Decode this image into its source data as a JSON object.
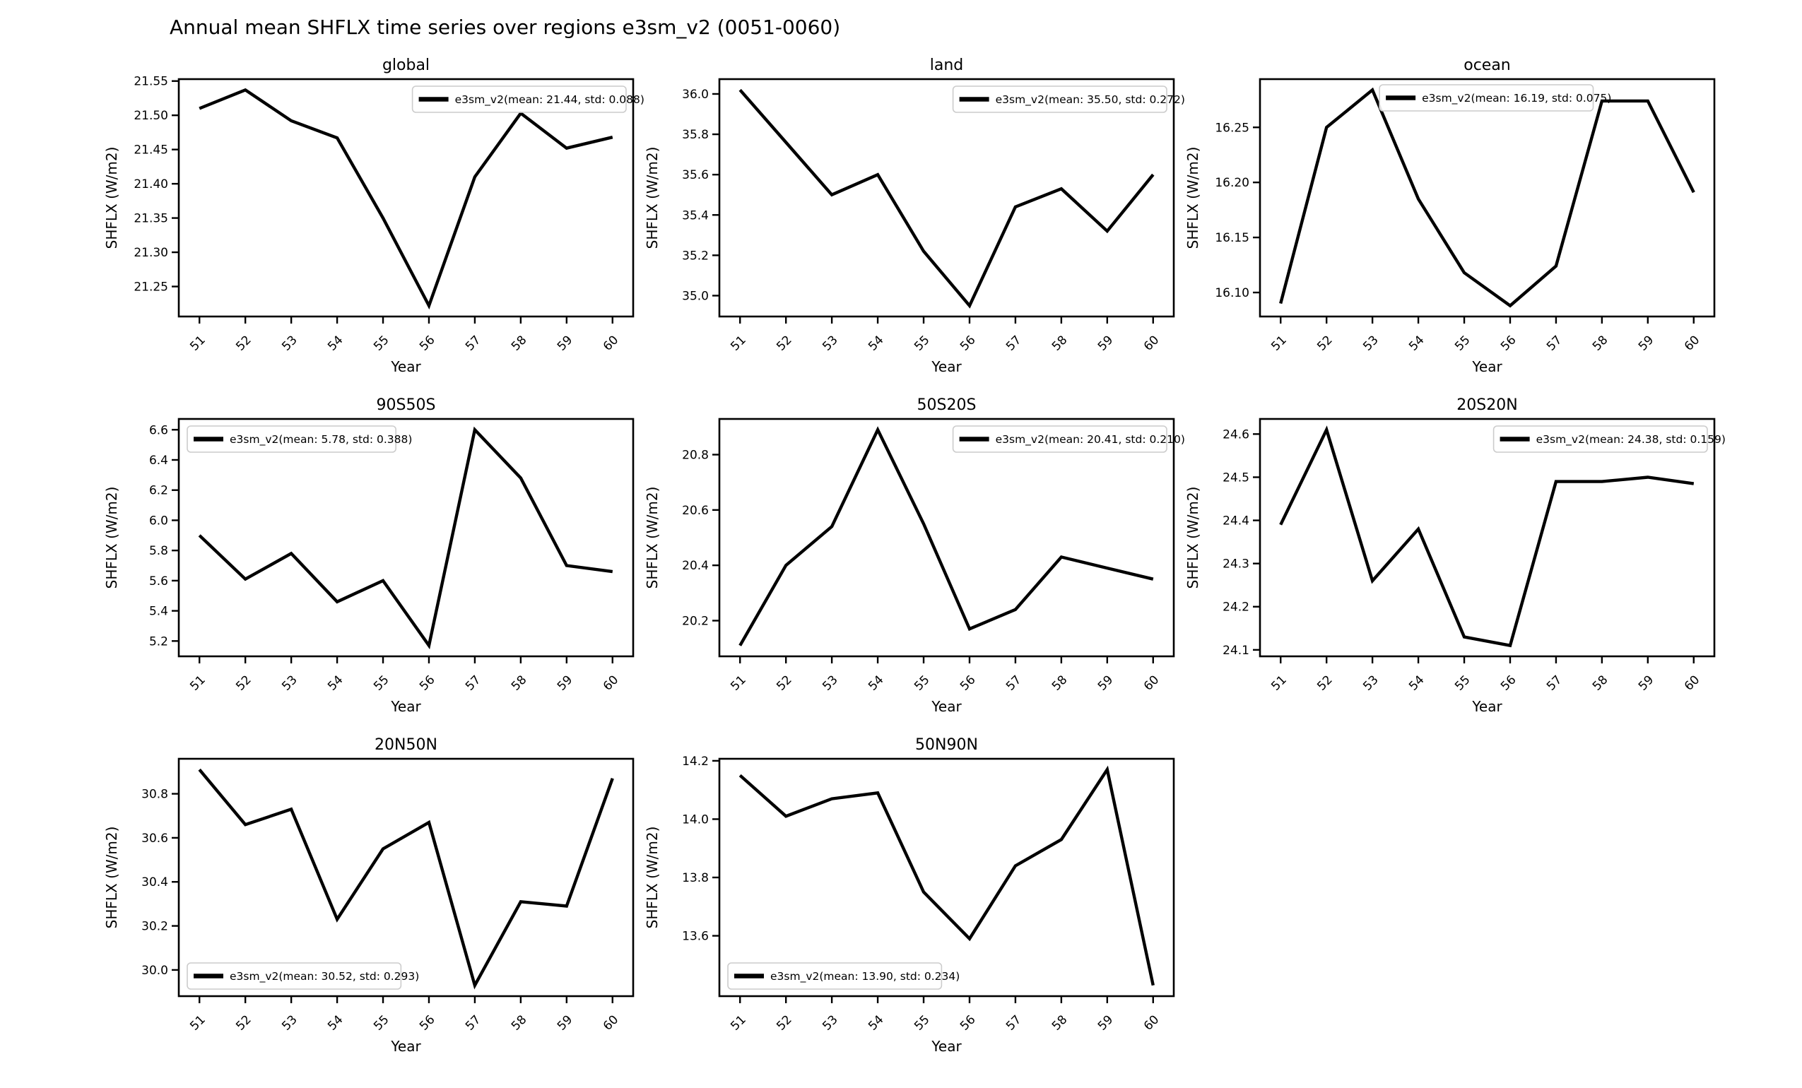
{
  "figure": {
    "title": "Annual mean SHFLX time series over regions e3sm_v2 (0051-0060)",
    "background_color": "#ffffff",
    "line_color": "#000000",
    "legend_border_color": "#cccccc"
  },
  "chart_data": [
    {
      "type": "line",
      "region": "global",
      "title": "global",
      "xlabel": "Year",
      "ylabel": "SHFLX (W/m2)",
      "x": [
        51,
        52,
        53,
        54,
        55,
        56,
        57,
        58,
        59,
        60
      ],
      "xtick_labels": [
        "51",
        "52",
        "53",
        "54",
        "55",
        "56",
        "57",
        "58",
        "59",
        "60"
      ],
      "series": [
        {
          "name": "e3sm_v2",
          "legend_label": "e3sm_v2(mean: 21.44, std: 0.088)",
          "values": [
            21.51,
            21.537,
            21.492,
            21.467,
            21.35,
            21.222,
            21.41,
            21.503,
            21.452,
            21.468
          ]
        }
      ],
      "mean": 21.44,
      "std": 0.088,
      "ylim": [
        21.2062,
        21.5528
      ],
      "yticks": [
        21.25,
        21.3,
        21.35,
        21.4,
        21.45,
        21.5,
        21.55
      ],
      "ytick_labels": [
        "21.25",
        "21.30",
        "21.35",
        "21.40",
        "21.45",
        "21.50",
        "21.55"
      ],
      "legend_loc": "upper right",
      "grid": false,
      "row": 0,
      "col": 0
    },
    {
      "type": "line",
      "region": "land",
      "title": "land",
      "xlabel": "Year",
      "ylabel": "SHFLX (W/m2)",
      "x": [
        51,
        52,
        53,
        54,
        55,
        56,
        57,
        58,
        59,
        60
      ],
      "xtick_labels": [
        "51",
        "52",
        "53",
        "54",
        "55",
        "56",
        "57",
        "58",
        "59",
        "60"
      ],
      "series": [
        {
          "name": "e3sm_v2",
          "legend_label": "e3sm_v2(mean: 35.50, std: 0.272)",
          "values": [
            36.02,
            35.76,
            35.5,
            35.6,
            35.22,
            34.95,
            35.44,
            35.53,
            35.32,
            35.6
          ]
        }
      ],
      "mean": 35.5,
      "std": 0.272,
      "ylim": [
        34.8965,
        36.0735
      ],
      "yticks": [
        35.0,
        35.2,
        35.4,
        35.6,
        35.8,
        36.0
      ],
      "ytick_labels": [
        "35.0",
        "35.2",
        "35.4",
        "35.6",
        "35.8",
        "36.0"
      ],
      "legend_loc": "upper right",
      "grid": false,
      "row": 0,
      "col": 1
    },
    {
      "type": "line",
      "region": "ocean",
      "title": "ocean",
      "xlabel": "Year",
      "ylabel": "SHFLX (W/m2)",
      "x": [
        51,
        52,
        53,
        54,
        55,
        56,
        57,
        58,
        59,
        60
      ],
      "xtick_labels": [
        "51",
        "52",
        "53",
        "54",
        "55",
        "56",
        "57",
        "58",
        "59",
        "60"
      ],
      "series": [
        {
          "name": "e3sm_v2",
          "legend_label": "e3sm_v2(mean: 16.19, std: 0.075)",
          "values": [
            16.09,
            16.25,
            16.284,
            16.185,
            16.118,
            16.088,
            16.124,
            16.274,
            16.274,
            16.191
          ]
        }
      ],
      "mean": 16.19,
      "std": 0.075,
      "ylim": [
        16.0782,
        16.2938
      ],
      "yticks": [
        16.1,
        16.15,
        16.2,
        16.25
      ],
      "ytick_labels": [
        "16.10",
        "16.15",
        "16.20",
        "16.25"
      ],
      "legend_loc": "upper center",
      "legend_x_frac": 0.263,
      "grid": false,
      "row": 0,
      "col": 2
    },
    {
      "type": "line",
      "region": "90S50S",
      "title": "90S50S",
      "xlabel": "Year",
      "ylabel": "SHFLX (W/m2)",
      "x": [
        51,
        52,
        53,
        54,
        55,
        56,
        57,
        58,
        59,
        60
      ],
      "xtick_labels": [
        "51",
        "52",
        "53",
        "54",
        "55",
        "56",
        "57",
        "58",
        "59",
        "60"
      ],
      "series": [
        {
          "name": "e3sm_v2",
          "legend_label": "e3sm_v2(mean: 5.78, std: 0.388)",
          "values": [
            5.9,
            5.61,
            5.78,
            5.46,
            5.6,
            5.17,
            6.6,
            6.28,
            5.7,
            5.66
          ]
        }
      ],
      "mean": 5.78,
      "std": 0.388,
      "ylim": [
        5.0985,
        6.6715
      ],
      "yticks": [
        5.2,
        5.4,
        5.6,
        5.8,
        6.0,
        6.2,
        6.4,
        6.6
      ],
      "ytick_labels": [
        "5.2",
        "5.4",
        "5.6",
        "5.8",
        "6.0",
        "6.2",
        "6.4",
        "6.6"
      ],
      "legend_loc": "upper left",
      "grid": false,
      "row": 1,
      "col": 0
    },
    {
      "type": "line",
      "region": "50S20S",
      "title": "50S20S",
      "xlabel": "Year",
      "ylabel": "SHFLX (W/m2)",
      "x": [
        51,
        52,
        53,
        54,
        55,
        56,
        57,
        58,
        59,
        60
      ],
      "xtick_labels": [
        "51",
        "52",
        "53",
        "54",
        "55",
        "56",
        "57",
        "58",
        "59",
        "60"
      ],
      "series": [
        {
          "name": "e3sm_v2",
          "legend_label": "e3sm_v2(mean: 20.41, std: 0.210)",
          "values": [
            20.11,
            20.4,
            20.54,
            20.89,
            20.55,
            20.17,
            20.24,
            20.43,
            20.39,
            20.35
          ]
        }
      ],
      "mean": 20.41,
      "std": 0.21,
      "ylim": [
        20.071,
        20.929
      ],
      "yticks": [
        20.2,
        20.4,
        20.6,
        20.8
      ],
      "ytick_labels": [
        "20.2",
        "20.4",
        "20.6",
        "20.8"
      ],
      "legend_loc": "upper right",
      "grid": false,
      "row": 1,
      "col": 1
    },
    {
      "type": "line",
      "region": "20S20N",
      "title": "20S20N",
      "xlabel": "Year",
      "ylabel": "SHFLX (W/m2)",
      "x": [
        51,
        52,
        53,
        54,
        55,
        56,
        57,
        58,
        59,
        60
      ],
      "xtick_labels": [
        "51",
        "52",
        "53",
        "54",
        "55",
        "56",
        "57",
        "58",
        "59",
        "60"
      ],
      "series": [
        {
          "name": "e3sm_v2",
          "legend_label": "e3sm_v2(mean: 24.38, std: 0.159)",
          "values": [
            24.39,
            24.61,
            24.26,
            24.38,
            24.13,
            24.11,
            24.49,
            24.49,
            24.5,
            24.485
          ]
        }
      ],
      "mean": 24.38,
      "std": 0.159,
      "ylim": [
        24.085,
        24.635
      ],
      "yticks": [
        24.1,
        24.2,
        24.3,
        24.4,
        24.5,
        24.6
      ],
      "ytick_labels": [
        "24.1",
        "24.2",
        "24.3",
        "24.4",
        "24.5",
        "24.6"
      ],
      "legend_loc": "upper right",
      "grid": false,
      "row": 1,
      "col": 2
    },
    {
      "type": "line",
      "region": "20N50N",
      "title": "20N50N",
      "xlabel": "Year",
      "ylabel": "SHFLX (W/m2)",
      "x": [
        51,
        52,
        53,
        54,
        55,
        56,
        57,
        58,
        59,
        60
      ],
      "xtick_labels": [
        "51",
        "52",
        "53",
        "54",
        "55",
        "56",
        "57",
        "58",
        "59",
        "60"
      ],
      "series": [
        {
          "name": "e3sm_v2",
          "legend_label": "e3sm_v2(mean: 30.52, std: 0.293)",
          "values": [
            30.91,
            30.66,
            30.73,
            30.23,
            30.55,
            30.67,
            29.93,
            30.31,
            30.29,
            30.87
          ]
        }
      ],
      "mean": 30.52,
      "std": 0.293,
      "ylim": [
        29.881,
        30.959
      ],
      "yticks": [
        30.0,
        30.2,
        30.4,
        30.6,
        30.8
      ],
      "ytick_labels": [
        "30.0",
        "30.2",
        "30.4",
        "30.6",
        "30.8"
      ],
      "legend_loc": "lower left",
      "grid": false,
      "row": 2,
      "col": 0
    },
    {
      "type": "line",
      "region": "50N90N",
      "title": "50N90N",
      "xlabel": "Year",
      "ylabel": "SHFLX (W/m2)",
      "x": [
        51,
        52,
        53,
        54,
        55,
        56,
        57,
        58,
        59,
        60
      ],
      "xtick_labels": [
        "51",
        "52",
        "53",
        "54",
        "55",
        "56",
        "57",
        "58",
        "59",
        "60"
      ],
      "series": [
        {
          "name": "e3sm_v2",
          "legend_label": "e3sm_v2(mean: 13.90, std: 0.234)",
          "values": [
            14.15,
            14.01,
            14.07,
            14.09,
            13.75,
            13.59,
            13.84,
            13.93,
            14.17,
            13.43
          ]
        }
      ],
      "mean": 13.9,
      "std": 0.234,
      "ylim": [
        13.393,
        14.207
      ],
      "yticks": [
        13.6,
        13.8,
        14.0,
        14.2
      ],
      "ytick_labels": [
        "13.6",
        "13.8",
        "14.0",
        "14.2"
      ],
      "legend_loc": "lower left",
      "grid": false,
      "row": 2,
      "col": 1
    }
  ]
}
